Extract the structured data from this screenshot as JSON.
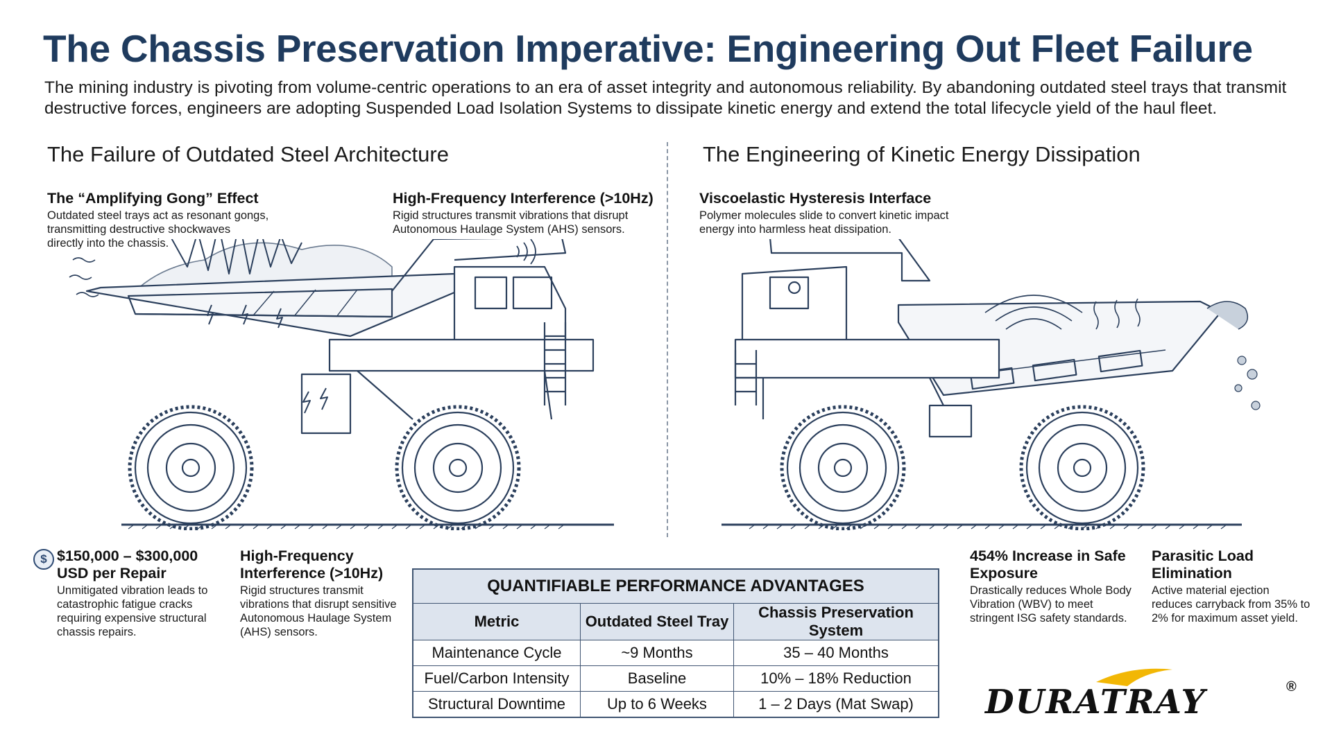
{
  "title": "The Chassis Preservation Imperative: Engineering Out Fleet Failure",
  "intro": "The mining industry is pivoting from volume-centric operations to an era of asset integrity and autonomous reliability. By abandoning outdated steel trays that transmit destructive forces, engineers are adopting Suspended Load Isolation Systems to dissipate kinetic energy and extend the total lifecycle yield of the haul fleet.",
  "left_section": {
    "title": "The Failure of Outdated Steel Architecture",
    "callout_gong": {
      "title": "The “Amplifying Gong” Effect",
      "body": "Outdated steel trays act as resonant gongs, transmitting destructive shockwaves directly into the chassis."
    },
    "callout_hf": {
      "title": "High-Frequency Interference (>10Hz)",
      "body": "Rigid structures transmit vibrations that disrupt Autonomous Haulage System (AHS) sensors."
    }
  },
  "right_section": {
    "title": "The Engineering of Kinetic Energy Dissipation",
    "callout_visco": {
      "title": "Viscoelastic Hysteresis Interface",
      "body": "Polymer molecules slide to convert kinetic impact energy into harmless heat dissipation."
    }
  },
  "bottom_left": {
    "cost": {
      "icon": "dollar-icon",
      "title": "$150,000 – $300,000 USD per Repair",
      "body": "Unmitigated vibration leads to catastrophic fatigue cracks requiring expensive structural chassis repairs."
    },
    "hf": {
      "title": "High-Frequency Interference (>10Hz)",
      "body": "Rigid structures transmit vibrations that disrupt sensitive Autonomous Haulage System (AHS) sensors."
    }
  },
  "bottom_right": {
    "safety": {
      "title": "454% Increase in Safe Exposure",
      "body": "Drastically reduces Whole Body Vibration (WBV) to meet stringent ISG safety standards."
    },
    "parasitic": {
      "title": "Parasitic Load Elimination",
      "body": "Active material ejection reduces carryback from 35% to 2% for maximum asset yield."
    }
  },
  "table": {
    "caption": "QUANTIFIABLE PERFORMANCE ADVANTAGES",
    "headers": [
      "Metric",
      "Outdated Steel Tray",
      "Chassis Preservation System"
    ],
    "rows": [
      [
        "Maintenance Cycle",
        "~9 Months",
        "35 – 40 Months"
      ],
      [
        "Fuel/Carbon Intensity",
        "Baseline",
        "10% – 18% Reduction"
      ],
      [
        "Structural Downtime",
        "Up to 6 Weeks",
        "1 – 2 Days (Mat Swap)"
      ]
    ]
  },
  "logo": {
    "text": "DURATRAY",
    "registered": "®",
    "accent_color": "#f2b705"
  },
  "colors": {
    "title": "#1f3b5e",
    "line_art": "#2b3f5c",
    "table_header_bg": "#dde4ee"
  }
}
